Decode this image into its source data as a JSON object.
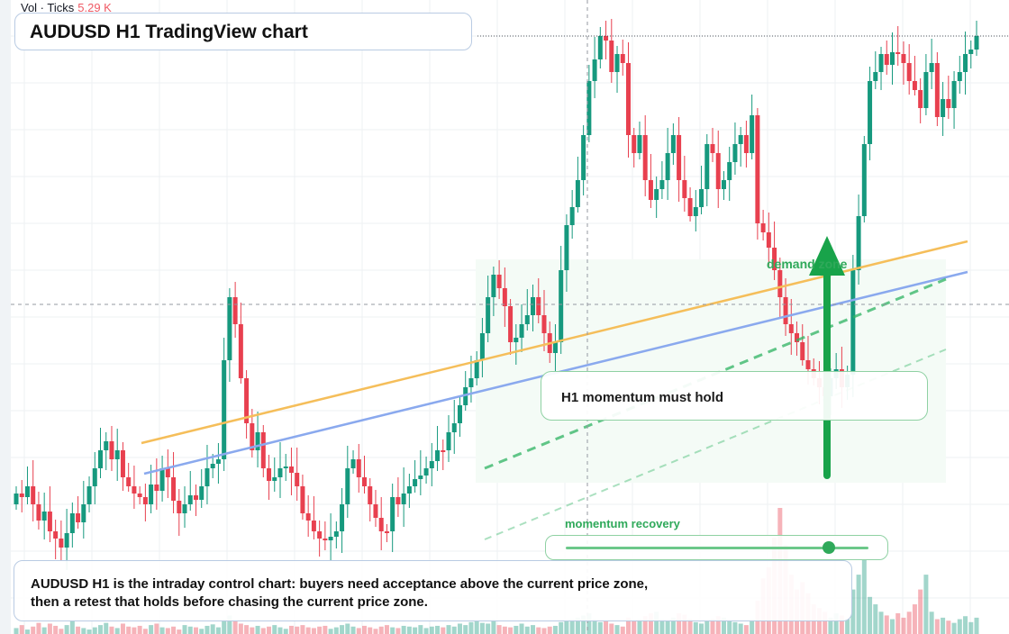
{
  "legend": {
    "label": "Vol · Ticks",
    "value": "5.29 K"
  },
  "title": "AUDUSD H1 TradingView chart",
  "callout": "H1 momentum must hold",
  "demand_label": "demand zone",
  "momentum": {
    "label": "momentum recovery",
    "level": 0.87
  },
  "note": "AUDUSD H1 is the intraday control chart: buyers need acceptance above the current price zone, then a retest that holds before chasing the current price zone.",
  "colors": {
    "up": "#16997e",
    "down": "#e8404f",
    "accent_green": "#18a34a",
    "trend_orange": "#f5be5a",
    "trend_blue": "#8aa9ee"
  },
  "arrow_icon": "up-arrow-icon",
  "chart_data": {
    "type": "candlestick",
    "title": "",
    "show_grid": true,
    "closes": [
      548,
      552,
      540,
      560,
      578,
      568,
      590,
      598,
      608,
      592,
      570,
      580,
      560,
      540,
      520,
      500,
      490,
      510,
      500,
      530,
      540,
      548,
      552,
      560,
      538,
      545,
      520,
      530,
      556,
      570,
      560,
      550,
      555,
      540,
      520,
      515,
      510,
      400,
      330,
      360,
      420,
      470,
      500,
      480,
      520,
      534,
      530,
      520,
      518,
      525,
      540,
      570,
      578,
      590,
      598,
      600,
      596,
      590,
      560,
      520,
      510,
      530,
      540,
      560,
      575,
      590,
      590,
      552,
      560,
      548,
      540,
      532,
      528,
      520,
      512,
      500,
      500,
      480,
      470,
      450,
      430,
      420,
      400,
      370,
      330,
      305,
      320,
      340,
      380,
      375,
      360,
      350,
      330,
      350,
      370,
      392,
      380,
      300,
      250,
      230,
      200,
      150,
      90,
      66,
      40,
      45,
      80,
      60,
      70,
      150,
      170,
      150,
      200,
      222,
      210,
      200,
      170,
      150,
      200,
      220,
      240,
      230,
      210,
      160,
      170,
      210,
      200,
      180,
      160,
      150,
      170,
      128,
      248,
      258,
      275,
      300,
      330,
      360,
      370,
      380,
      400,
      410,
      420,
      430,
      440,
      420,
      410,
      430,
      416,
      300,
      240,
      160,
      90,
      80,
      60,
      72,
      58,
      60,
      70,
      90,
      100,
      120,
      80,
      70,
      130,
      110,
      120,
      90,
      80,
      60,
      55,
      40
    ],
    "volumes": [
      8,
      12,
      6,
      10,
      15,
      9,
      14,
      11,
      7,
      12,
      18,
      10,
      8,
      6,
      9,
      12,
      15,
      10,
      8,
      14,
      10,
      9,
      11,
      7,
      12,
      14,
      9,
      8,
      10,
      6,
      12,
      10,
      9,
      7,
      11,
      13,
      9,
      20,
      25,
      18,
      14,
      12,
      9,
      11,
      8,
      10,
      12,
      9,
      7,
      11,
      10,
      12,
      9,
      8,
      10,
      11,
      7,
      9,
      12,
      14,
      10,
      8,
      11,
      9,
      7,
      10,
      12,
      9,
      8,
      11,
      10,
      9,
      12,
      8,
      10,
      11,
      9,
      12,
      10,
      14,
      12,
      16,
      18,
      15,
      14,
      20,
      12,
      10,
      9,
      11,
      14,
      10,
      12,
      9,
      8,
      10,
      11,
      16,
      18,
      20,
      22,
      25,
      28,
      20,
      16,
      18,
      14,
      12,
      10,
      22,
      18,
      20,
      24,
      28,
      30,
      20,
      18,
      22,
      28,
      26,
      20,
      16,
      14,
      18,
      20,
      24,
      22,
      18,
      16,
      14,
      12,
      20,
      45,
      75,
      90,
      130,
      170,
      120,
      80,
      60,
      70,
      55,
      40,
      35,
      30,
      22,
      28,
      25,
      20,
      60,
      80,
      100,
      50,
      40,
      30,
      25,
      20,
      28,
      22,
      30,
      40,
      60,
      80,
      30,
      20,
      22,
      18,
      15,
      20,
      24,
      16,
      22
    ]
  }
}
